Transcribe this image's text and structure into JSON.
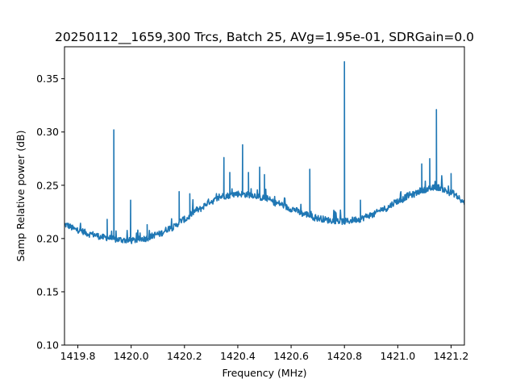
{
  "chart_data": {
    "type": "line",
    "title": "20250112__1659,300 Trcs, Batch 25, AVg=1.95e-01, SDRGain=0.0",
    "xlabel": "Frequency (MHz)",
    "ylabel": "Samp Relative power (dB)",
    "xlim": [
      1419.75,
      1421.25
    ],
    "ylim": [
      0.1,
      0.38
    ],
    "x_ticks": [
      1419.8,
      1420.0,
      1420.2,
      1420.4,
      1420.6,
      1420.8,
      1421.0,
      1421.2
    ],
    "x_tick_labels": [
      "1419.8",
      "1420.0",
      "1420.2",
      "1420.4",
      "1420.6",
      "1420.8",
      "1421.0",
      "1421.2"
    ],
    "y_ticks": [
      0.1,
      0.15,
      0.2,
      0.25,
      0.3,
      0.35
    ],
    "y_tick_labels": [
      "0.10",
      "0.15",
      "0.20",
      "0.25",
      "0.30",
      "0.35"
    ],
    "grid": false,
    "line_color": "#1f77b4",
    "series": [
      {
        "x": [
          1419.75,
          1419.8,
          1419.85,
          1419.9,
          1419.95,
          1420.0,
          1420.05,
          1420.1,
          1420.15,
          1420.2,
          1420.25,
          1420.3,
          1420.35,
          1420.4,
          1420.45,
          1420.5,
          1420.55,
          1420.6,
          1420.65,
          1420.7,
          1420.75,
          1420.8,
          1420.85,
          1420.9,
          1420.95,
          1421.0,
          1421.05,
          1421.1,
          1421.15,
          1421.2,
          1421.25
        ],
        "values": [
          0.213,
          0.208,
          0.204,
          0.201,
          0.199,
          0.198,
          0.2,
          0.204,
          0.21,
          0.218,
          0.227,
          0.235,
          0.24,
          0.242,
          0.241,
          0.238,
          0.233,
          0.228,
          0.223,
          0.219,
          0.217,
          0.216,
          0.218,
          0.222,
          0.228,
          0.235,
          0.241,
          0.246,
          0.248,
          0.243,
          0.234
        ]
      }
    ],
    "spikes": [
      {
        "x": 1419.91,
        "y": 0.218
      },
      {
        "x": 1419.935,
        "y": 0.302
      },
      {
        "x": 1419.998,
        "y": 0.236
      },
      {
        "x": 1420.06,
        "y": 0.213
      },
      {
        "x": 1420.18,
        "y": 0.244
      },
      {
        "x": 1420.22,
        "y": 0.242
      },
      {
        "x": 1420.348,
        "y": 0.276
      },
      {
        "x": 1420.37,
        "y": 0.262
      },
      {
        "x": 1420.418,
        "y": 0.288
      },
      {
        "x": 1420.44,
        "y": 0.262
      },
      {
        "x": 1420.482,
        "y": 0.267
      },
      {
        "x": 1420.5,
        "y": 0.26
      },
      {
        "x": 1420.67,
        "y": 0.265
      },
      {
        "x": 1420.8,
        "y": 0.366
      },
      {
        "x": 1420.86,
        "y": 0.236
      },
      {
        "x": 1421.09,
        "y": 0.27
      },
      {
        "x": 1421.12,
        "y": 0.275
      },
      {
        "x": 1421.145,
        "y": 0.321
      },
      {
        "x": 1421.2,
        "y": 0.261
      }
    ]
  }
}
